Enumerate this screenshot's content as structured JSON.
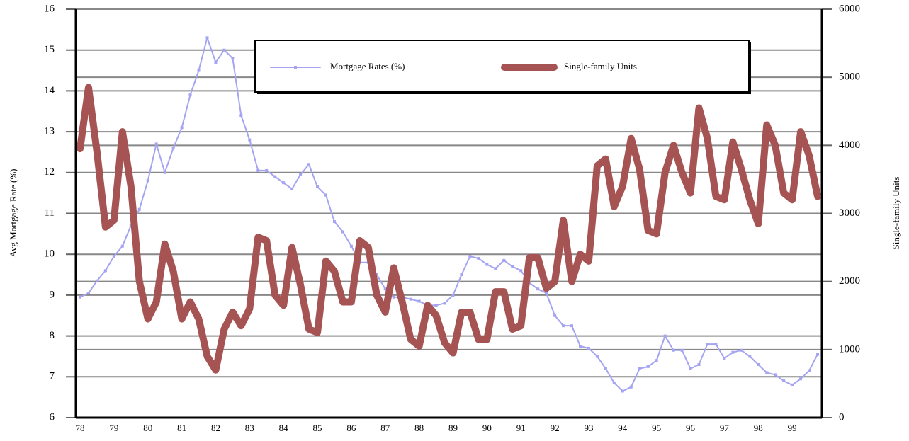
{
  "chart_data": {
    "type": "line",
    "y_label": "Avg Mortgage Rate (%)",
    "y2_label": "Single-family Units",
    "categories": [
      "78",
      null,
      null,
      null,
      "79",
      null,
      null,
      null,
      "80",
      null,
      null,
      null,
      "81",
      null,
      null,
      null,
      "82",
      null,
      null,
      null,
      "83",
      null,
      null,
      null,
      "84",
      null,
      null,
      null,
      "85",
      null,
      null,
      null,
      "86",
      null,
      null,
      null,
      "87",
      null,
      null,
      null,
      "88",
      null,
      null,
      null,
      "89",
      null,
      null,
      null,
      "90",
      null,
      null,
      null,
      "91",
      null,
      null,
      null,
      "92",
      null,
      null,
      null,
      "93",
      null,
      null,
      null,
      "94",
      null,
      null,
      null,
      "95",
      null,
      null,
      null,
      "96",
      null,
      null,
      null,
      "97",
      null,
      null,
      null,
      "98",
      null,
      null,
      null,
      "99",
      null,
      null,
      null
    ],
    "series": [
      {
        "name": "Mortgage Rates (%)",
        "color": "#a4a4f2",
        "axis": "y",
        "values": [
          8.95,
          9.05,
          9.35,
          9.6,
          9.95,
          10.2,
          10.7,
          11.1,
          11.8,
          12.7,
          12.0,
          12.6,
          13.1,
          13.9,
          14.5,
          15.3,
          14.7,
          15.0,
          14.8,
          13.4,
          12.8,
          12.05,
          12.05,
          11.9,
          11.75,
          11.6,
          11.95,
          12.2,
          11.65,
          11.45,
          10.8,
          10.55,
          10.2,
          9.8,
          9.8,
          9.5,
          9.15,
          8.95,
          8.95,
          8.9,
          8.85,
          8.75,
          8.75,
          8.8,
          9.0,
          9.5,
          9.95,
          9.9,
          9.75,
          9.65,
          9.85,
          9.7,
          9.6,
          9.3,
          9.15,
          9.05,
          8.5,
          8.25,
          8.25,
          7.75,
          7.7,
          7.5,
          7.2,
          6.85,
          6.65,
          6.75,
          7.2,
          7.25,
          7.4,
          8.0,
          7.65,
          7.65,
          7.2,
          7.3,
          7.8,
          7.8,
          7.45,
          7.6,
          7.65,
          7.5,
          7.3,
          7.1,
          7.05,
          6.9,
          6.8,
          6.95,
          7.15,
          7.55
        ]
      },
      {
        "name": "Single-family Units",
        "color": "#a65353",
        "axis": "y2",
        "values": [
          3950,
          4850,
          3900,
          2800,
          2900,
          4200,
          3400,
          2000,
          1450,
          1700,
          2550,
          2150,
          1450,
          1700,
          1450,
          900,
          700,
          1300,
          1550,
          1350,
          1600,
          2650,
          2600,
          1800,
          1650,
          2500,
          1950,
          1300,
          1250,
          2300,
          2150,
          1700,
          1700,
          2600,
          2500,
          1800,
          1550,
          2200,
          1700,
          1150,
          1050,
          1650,
          1500,
          1100,
          950,
          1550,
          1550,
          1150,
          1150,
          1850,
          1850,
          1300,
          1350,
          2350,
          2350,
          1900,
          2000,
          2900,
          2000,
          2400,
          2300,
          3700,
          3800,
          3100,
          3400,
          4100,
          3650,
          2750,
          2700,
          3600,
          4000,
          3600,
          3300,
          4550,
          4100,
          3250,
          3200,
          4050,
          3650,
          3200,
          2850,
          4300,
          4000,
          3300,
          3200,
          4200,
          3850,
          3250
        ]
      }
    ],
    "ylim": [
      6,
      16
    ],
    "yticks": [
      6,
      7,
      8,
      9,
      10,
      11,
      12,
      13,
      14,
      15,
      16
    ],
    "y2lim": [
      0,
      6000
    ],
    "y2ticks": [
      0,
      1000,
      2000,
      3000,
      4000,
      5000,
      6000
    ],
    "grid": true,
    "legend": "top"
  }
}
